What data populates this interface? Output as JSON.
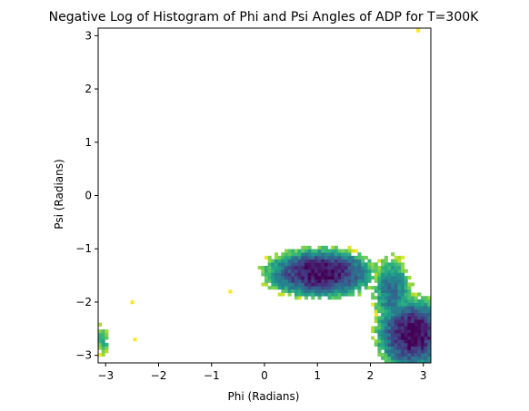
{
  "chart_data": {
    "type": "heatmap",
    "title": "Negative Log of Histogram of Phi and Psi Angles of ADP for T=300K",
    "xlabel": "Phi (Radians)",
    "ylabel": "Psi (Radians)",
    "xlim": [
      -3.14159,
      3.14159
    ],
    "ylim": [
      -3.14159,
      3.14159
    ],
    "x_ticks": [
      -3,
      -2,
      -1,
      0,
      1,
      2,
      3
    ],
    "y_ticks": [
      -3,
      -2,
      -1,
      0,
      1,
      2,
      3
    ],
    "x_tick_labels": [
      "−3",
      "−2",
      "−1",
      "0",
      "1",
      "2",
      "3"
    ],
    "y_tick_labels": [
      "−3",
      "−2",
      "−1",
      "0",
      "1",
      "2",
      "3"
    ],
    "grid": false,
    "colormap": "viridis",
    "bins": 100,
    "regions": [
      {
        "center_phi": 1.05,
        "center_psi": -1.45,
        "spread_phi": 0.45,
        "spread_psi": 0.2,
        "min_value": 0.0
      },
      {
        "center_phi": 2.8,
        "center_psi": -2.6,
        "spread_phi": 0.3,
        "spread_psi": 0.3,
        "min_value": 0.0
      },
      {
        "center_phi": 2.4,
        "center_psi": -1.8,
        "spread_phi": 0.2,
        "spread_psi": 0.35,
        "min_value": 1.5
      },
      {
        "center_phi": -3.05,
        "center_psi": -2.7,
        "spread_phi": 0.08,
        "spread_psi": 0.25,
        "min_value": 2.5
      }
    ],
    "isolated_points": [
      {
        "phi": 2.9,
        "psi": 3.1
      },
      {
        "phi": -2.5,
        "psi": -2.0
      },
      {
        "phi": -0.65,
        "psi": -1.8
      },
      {
        "phi": -2.45,
        "psi": -2.7
      }
    ]
  }
}
